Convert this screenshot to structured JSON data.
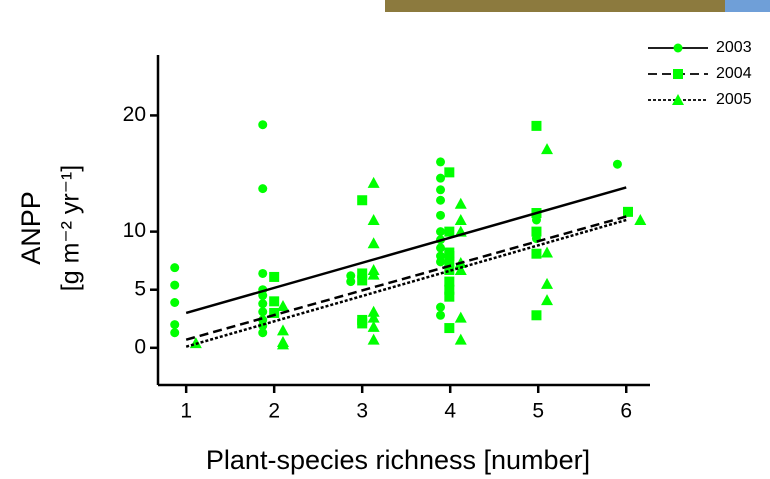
{
  "chart_data": {
    "type": "scatter",
    "xlabel": "Plant-species richness [number]",
    "ylabel": "ANPP",
    "ylabel_unit": "[g m⁻² yr⁻¹]",
    "xlim": [
      0.68,
      6.27
    ],
    "ylim": [
      -3.2,
      25.2
    ],
    "xticks": [
      1,
      2,
      3,
      4,
      5,
      6
    ],
    "yticks": [
      0,
      5,
      10,
      20
    ],
    "legend": "top-right",
    "series": [
      {
        "name": "2003",
        "color": "#00ff00",
        "marker": "circle",
        "dash": "solid",
        "x": [
          0.87,
          0.87,
          0.87,
          0.87,
          0.87,
          1.87,
          1.87,
          1.87,
          1.87,
          1.87,
          1.87,
          1.87,
          1.87,
          1.87,
          1.87,
          2.87,
          2.87,
          3.89,
          3.89,
          3.89,
          3.89,
          3.89,
          3.89,
          3.89,
          3.89,
          3.89,
          3.89,
          3.89,
          3.89,
          4.98,
          4.98,
          4.98,
          4.98,
          5.9
        ],
        "values": [
          6.9,
          5.4,
          3.9,
          2.0,
          1.3,
          19.2,
          13.7,
          6.4,
          5.0,
          4.5,
          3.8,
          3.1,
          2.4,
          1.9,
          1.3,
          6.2,
          5.7,
          16.0,
          14.6,
          13.6,
          12.7,
          11.4,
          10.0,
          9.3,
          8.6,
          7.9,
          7.4,
          3.5,
          2.8,
          11.6,
          11.0,
          10.0,
          9.4,
          15.8
        ],
        "trend": {
          "x": [
            1,
            6
          ],
          "values": [
            3.0,
            13.8
          ]
        }
      },
      {
        "name": "2004",
        "color": "#00ff00",
        "marker": "square",
        "dash": "dashed",
        "x": [
          2.0,
          2.0,
          2.0,
          3.0,
          3.0,
          3.0,
          3.0,
          3.0,
          3.99,
          3.99,
          3.99,
          3.99,
          3.99,
          3.99,
          3.99,
          3.99,
          3.99,
          3.99,
          4.98,
          4.98,
          4.98,
          4.98,
          4.98,
          6.02
        ],
        "values": [
          6.1,
          4.0,
          3.0,
          12.7,
          6.4,
          5.8,
          2.4,
          2.1,
          15.1,
          10.0,
          8.2,
          7.9,
          7.4,
          6.7,
          5.7,
          5.0,
          4.4,
          1.7,
          19.1,
          11.6,
          10.0,
          8.1,
          2.8,
          11.7
        ],
        "trend": {
          "x": [
            1,
            6
          ],
          "values": [
            0.7,
            11.3
          ]
        }
      },
      {
        "name": "2005",
        "color": "#00ff00",
        "marker": "triangle",
        "dash": "dotted",
        "x": [
          1.11,
          2.1,
          2.1,
          2.1,
          2.1,
          3.13,
          3.13,
          3.13,
          3.13,
          3.13,
          3.13,
          3.13,
          3.13,
          3.13,
          4.12,
          4.12,
          4.12,
          4.12,
          4.12,
          4.12,
          4.12,
          5.1,
          5.1,
          5.1,
          5.1,
          6.16
        ],
        "values": [
          0.4,
          3.6,
          1.5,
          0.5,
          0.3,
          14.2,
          11.0,
          9.0,
          6.7,
          6.3,
          3.1,
          2.6,
          1.8,
          0.7,
          12.4,
          11.0,
          10.0,
          7.3,
          6.7,
          2.6,
          0.7,
          17.1,
          8.2,
          5.5,
          4.1,
          11.0
        ],
        "trend": {
          "x": [
            1,
            6
          ],
          "values": [
            0.1,
            11.0
          ]
        }
      }
    ]
  }
}
